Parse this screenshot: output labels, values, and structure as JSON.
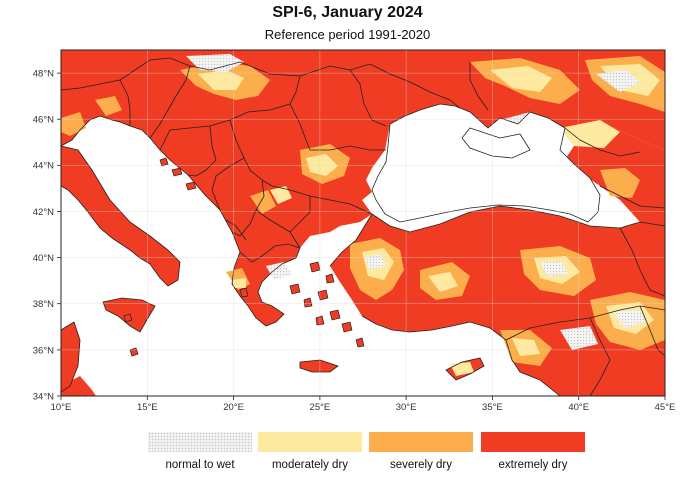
{
  "title": "SPI-6, January 2024",
  "subtitle": "Reference period 1991-2020",
  "axes": {
    "lon_ticks": [
      "10°E",
      "15°E",
      "20°E",
      "25°E",
      "30°E",
      "35°E",
      "40°E",
      "45°E"
    ],
    "lat_ticks": [
      "48°N",
      "46°N",
      "44°N",
      "42°N",
      "40°N",
      "38°N",
      "36°N",
      "34°N"
    ],
    "lon_range": [
      10,
      45
    ],
    "lat_range": [
      34,
      49
    ]
  },
  "legend": {
    "items": [
      {
        "label": "normal to wet",
        "color": "#f2f2f2",
        "pattern": "stipple"
      },
      {
        "label": "moderately dry",
        "color": "#fde9a0"
      },
      {
        "label": "severely dry",
        "color": "#fcae4c"
      },
      {
        "label": "extremely dry",
        "color": "#ef3c23"
      }
    ]
  },
  "colors": {
    "sea": "#ffffff",
    "border": "#222222",
    "grid": "#d9d9d9"
  }
}
